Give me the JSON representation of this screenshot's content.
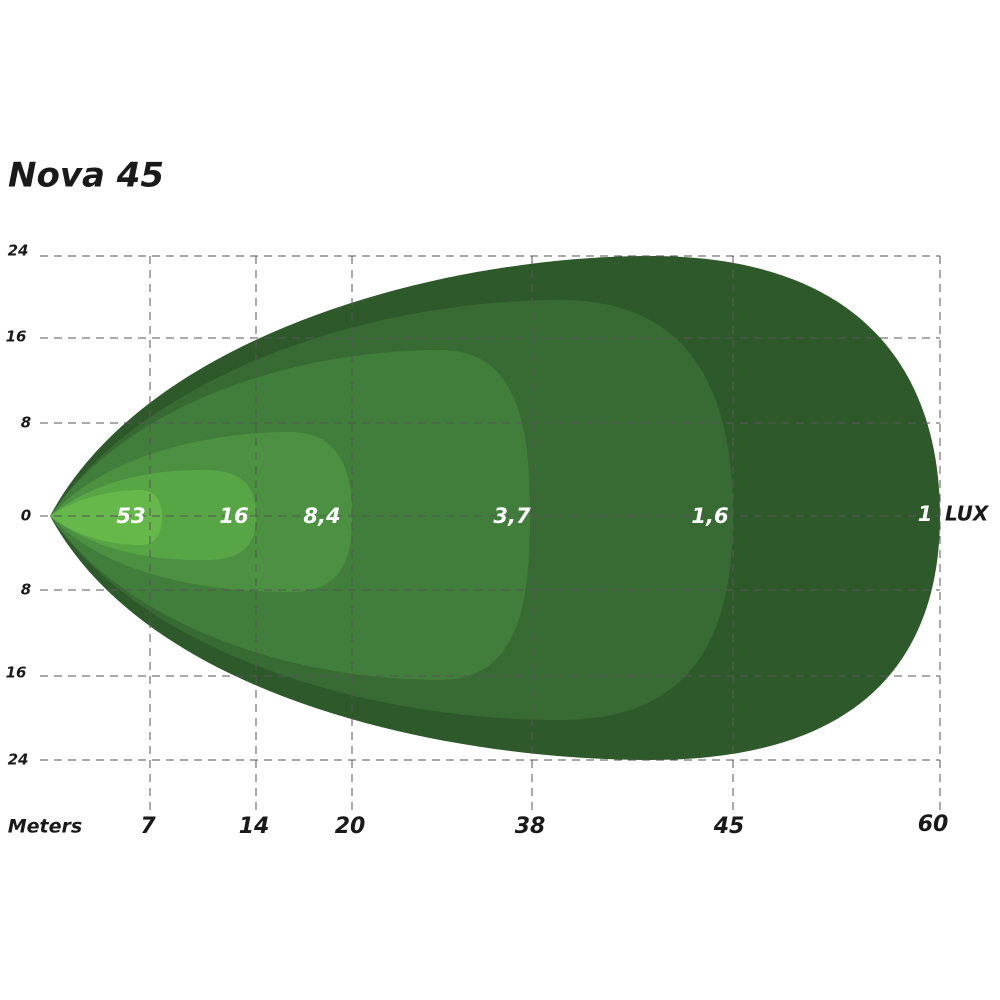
{
  "title": "Nova 45",
  "y_labels": [
    "24",
    "16",
    "8",
    "0",
    "8",
    "16",
    "24"
  ],
  "x_axis_label": "Meters",
  "x_labels": [
    "7",
    "14",
    "20",
    "38",
    "45",
    "60"
  ],
  "lux_labels": [
    "53",
    "16",
    "8,4",
    "3,7",
    "1,6",
    "1"
  ],
  "lux_unit": "LUX"
}
